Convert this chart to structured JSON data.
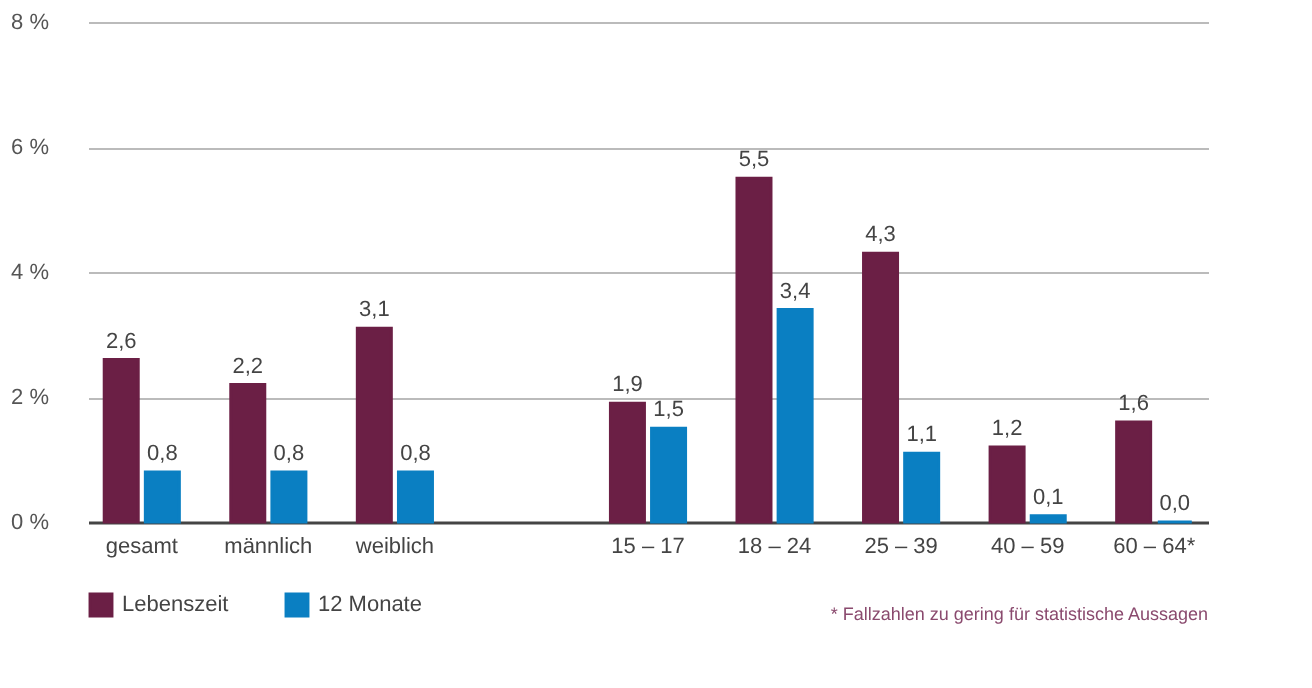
{
  "chart_data": {
    "type": "bar",
    "categories": [
      "gesamt",
      "männlich",
      "weiblich",
      null,
      "15 – 17",
      "18 – 24",
      "25 – 39",
      "40 – 59",
      "60 – 64*"
    ],
    "series": [
      {
        "name": "Lebenszeit",
        "color": "#6b1f45",
        "values": [
          2.6,
          2.2,
          3.1,
          null,
          1.9,
          5.5,
          4.3,
          1.2,
          1.6
        ],
        "value_labels": [
          "2,6",
          "2,2",
          "3,1",
          null,
          "1,9",
          "5,5",
          "4,3",
          "1,2",
          "1,6"
        ]
      },
      {
        "name": "12 Monate",
        "color": "#0a7fc2",
        "values": [
          0.8,
          0.8,
          0.8,
          null,
          1.5,
          3.4,
          1.1,
          0.1,
          0.0
        ],
        "value_labels": [
          "0,8",
          "0,8",
          "0,8",
          null,
          "1,5",
          "3,4",
          "1,1",
          "0,1",
          "0,0"
        ]
      }
    ],
    "ylim": [
      0,
      8
    ],
    "yticks": [
      {
        "value": 0,
        "label": "0 %"
      },
      {
        "value": 2,
        "label": "2 %"
      },
      {
        "value": 4,
        "label": "4 %"
      },
      {
        "value": 6,
        "label": "6 %"
      },
      {
        "value": 8,
        "label": "8 %"
      }
    ],
    "grid": "y",
    "legend": "bottom left",
    "annotations": [
      "* Fallzahlen zu gering für statistische Aussagen"
    ]
  }
}
